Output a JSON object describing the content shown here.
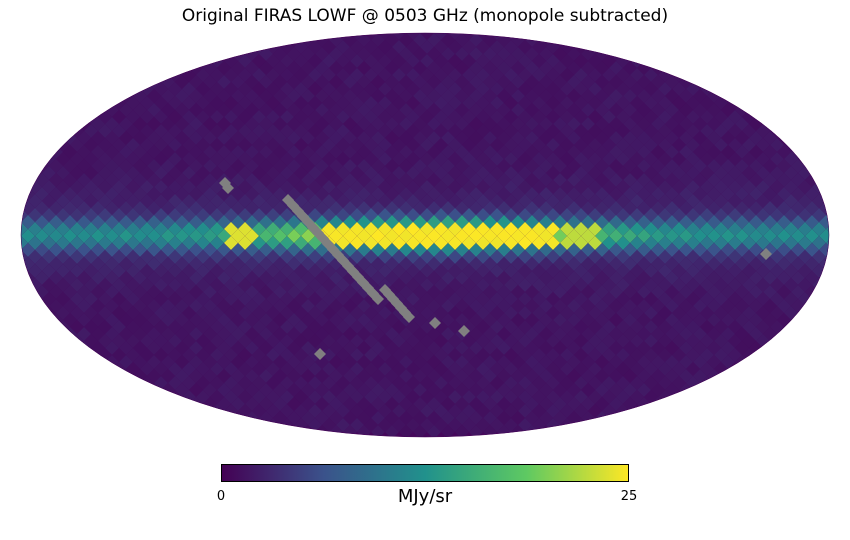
{
  "title": "Original FIRAS LOWF @ 0503 GHz (monopole subtracted)",
  "colorbar": {
    "min_label": "0",
    "max_label": "25",
    "unit": "MJy/sr",
    "min": 0,
    "max": 25,
    "colormap": [
      "#440154",
      "#3b528b",
      "#21918c",
      "#5ec962",
      "#fde725"
    ],
    "masked_color": "#808080"
  },
  "projection": "mollweide"
}
